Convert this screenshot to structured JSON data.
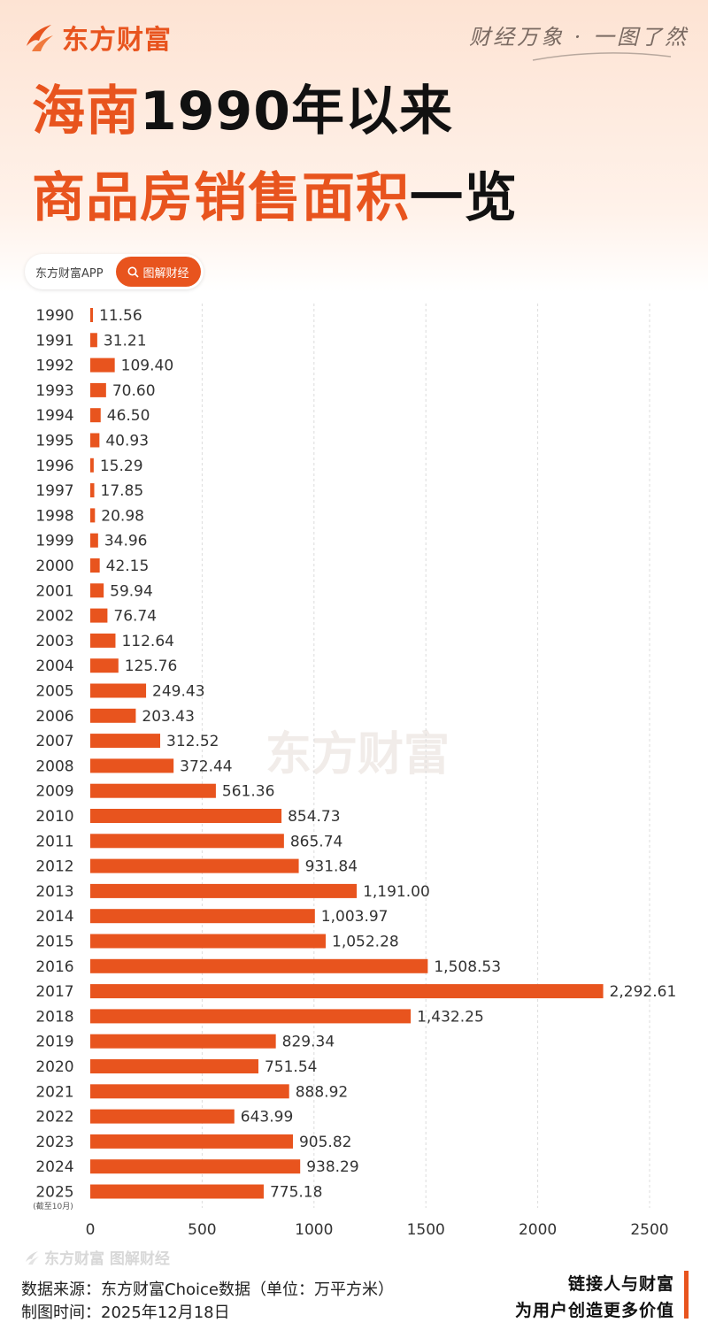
{
  "brand": {
    "name": "东方财富",
    "slogan": "财经万象 · 一图了然",
    "accent": "#e8541e",
    "logo_icon": "flame-icon"
  },
  "title": {
    "line1_highlight": "海南",
    "line1_rest": "1990年以来",
    "line2_highlight": "商品房销售面积",
    "line2_rest": "一览"
  },
  "pill": {
    "label": "东方财富APP",
    "button": "图解财经",
    "button_icon": "search-icon"
  },
  "watermark": "东方财富",
  "chart_data": {
    "type": "bar",
    "orientation": "horizontal",
    "title": "海南1990年以来商品房销售面积一览",
    "categories": [
      "1990",
      "1991",
      "1992",
      "1993",
      "1994",
      "1995",
      "1996",
      "1997",
      "1998",
      "1999",
      "2000",
      "2001",
      "2002",
      "2003",
      "2004",
      "2005",
      "2006",
      "2007",
      "2008",
      "2009",
      "2010",
      "2011",
      "2012",
      "2013",
      "2014",
      "2015",
      "2016",
      "2017",
      "2018",
      "2019",
      "2020",
      "2021",
      "2022",
      "2023",
      "2024",
      "2025"
    ],
    "values": [
      11.56,
      31.21,
      109.4,
      70.6,
      46.5,
      40.93,
      15.29,
      17.85,
      20.98,
      34.96,
      42.15,
      59.94,
      76.74,
      112.64,
      125.76,
      249.43,
      203.43,
      312.52,
      372.44,
      561.36,
      854.73,
      865.74,
      931.84,
      1191.0,
      1003.97,
      1052.28,
      1508.53,
      2292.61,
      1432.25,
      829.34,
      751.54,
      888.92,
      643.99,
      905.82,
      938.29,
      775.18
    ],
    "value_labels": [
      "11.56",
      "31.21",
      "109.40",
      "70.60",
      "46.50",
      "40.93",
      "15.29",
      "17.85",
      "20.98",
      "34.96",
      "42.15",
      "59.94",
      "76.74",
      "112.64",
      "125.76",
      "249.43",
      "203.43",
      "312.52",
      "372.44",
      "561.36",
      "854.73",
      "865.74",
      "931.84",
      "1,191.00",
      "1,003.97",
      "1,052.28",
      "1,508.53",
      "2,292.61",
      "1,432.25",
      "829.34",
      "751.54",
      "888.92",
      "643.99",
      "905.82",
      "938.29",
      "775.18"
    ],
    "category_note": "(截至10月)",
    "xlim": [
      0,
      2500
    ],
    "xticks": [
      "0",
      "500",
      "1000",
      "1500",
      "2000",
      "2500"
    ],
    "xtick_values": [
      0,
      500,
      1000,
      1500,
      2000,
      2500
    ],
    "grid": "vertical-dashed",
    "bar_color": "#e8541e"
  },
  "footer": {
    "watermark": "东方财富 图解财经",
    "source": "数据来源：东方财富Choice数据（单位：万平方米）",
    "made": "制图时间：2025年12月18日",
    "tagline1": "链接人与财富",
    "tagline2": "为用户创造更多价值"
  }
}
